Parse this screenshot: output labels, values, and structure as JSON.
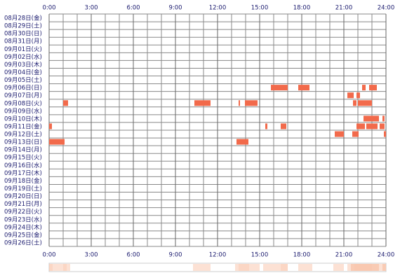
{
  "chart_data": {
    "type": "timeline",
    "xlim": [
      0,
      24
    ],
    "xticks": [
      {
        "value": 0,
        "label": "0:00"
      },
      {
        "value": 3,
        "label": "3:00"
      },
      {
        "value": 6,
        "label": "6:00"
      },
      {
        "value": 9,
        "label": "9:00"
      },
      {
        "value": 12,
        "label": "12:00"
      },
      {
        "value": 15,
        "label": "15:00"
      },
      {
        "value": 18,
        "label": "18:00"
      },
      {
        "value": 21,
        "label": "21:00"
      },
      {
        "value": 24,
        "label": "24:00"
      }
    ],
    "color": "#f26a4b",
    "rows": [
      {
        "label": "08月28日(金)",
        "segments": []
      },
      {
        "label": "08月29日(土)",
        "segments": []
      },
      {
        "label": "08月30日(日)",
        "segments": []
      },
      {
        "label": "08月31日(月)",
        "segments": []
      },
      {
        "label": "09月01日(火)",
        "segments": []
      },
      {
        "label": "09月02日(水)",
        "segments": []
      },
      {
        "label": "09月03日(木)",
        "segments": []
      },
      {
        "label": "09月04日(金)",
        "segments": []
      },
      {
        "label": "09月05日(土)",
        "segments": []
      },
      {
        "label": "09月06日(日)",
        "segments": [
          [
            15.8,
            17.0
          ],
          [
            17.75,
            18.55
          ],
          [
            22.3,
            22.55
          ],
          [
            22.8,
            23.35
          ]
        ]
      },
      {
        "label": "09月07日(月)",
        "segments": [
          [
            21.25,
            21.7
          ],
          [
            21.9,
            22.15
          ]
        ]
      },
      {
        "label": "09月08日(火)",
        "segments": [
          [
            1.0,
            1.35
          ],
          [
            10.35,
            11.5
          ],
          [
            13.5,
            13.6
          ],
          [
            13.95,
            14.85
          ],
          [
            21.65,
            21.9
          ],
          [
            22.0,
            23.0
          ]
        ]
      },
      {
        "label": "09月09日(水)",
        "segments": []
      },
      {
        "label": "09月10日(木)",
        "segments": [
          [
            22.4,
            23.5
          ],
          [
            23.75,
            23.9
          ]
        ]
      },
      {
        "label": "09月11日(金)",
        "segments": [
          [
            0,
            0.2
          ],
          [
            15.4,
            15.55
          ],
          [
            16.5,
            16.9
          ],
          [
            21.9,
            22.5
          ],
          [
            22.6,
            23.4
          ],
          [
            23.55,
            23.9
          ]
        ]
      },
      {
        "label": "09月12日(土)",
        "segments": [
          [
            20.35,
            21.0
          ],
          [
            21.6,
            22.05
          ],
          [
            23.85,
            24
          ]
        ]
      },
      {
        "label": "09月13日(日)",
        "segments": [
          [
            0,
            1.1
          ],
          [
            13.35,
            14.2
          ]
        ]
      },
      {
        "label": "09月14日(月)",
        "segments": []
      },
      {
        "label": "09月15日(火)",
        "segments": []
      },
      {
        "label": "09月16日(水)",
        "segments": []
      },
      {
        "label": "09月17日(木)",
        "segments": []
      },
      {
        "label": "09月18日(金)",
        "segments": []
      },
      {
        "label": "09月19日(土)",
        "segments": []
      },
      {
        "label": "09月20日(日)",
        "segments": []
      },
      {
        "label": "09月21日(月)",
        "segments": []
      },
      {
        "label": "09月22日(火)",
        "segments": []
      },
      {
        "label": "09月23日(水)",
        "segments": []
      },
      {
        "label": "09月24日(木)",
        "segments": []
      },
      {
        "label": "09月25日(金)",
        "segments": []
      },
      {
        "label": "09月26日(土)",
        "segments": []
      }
    ]
  }
}
